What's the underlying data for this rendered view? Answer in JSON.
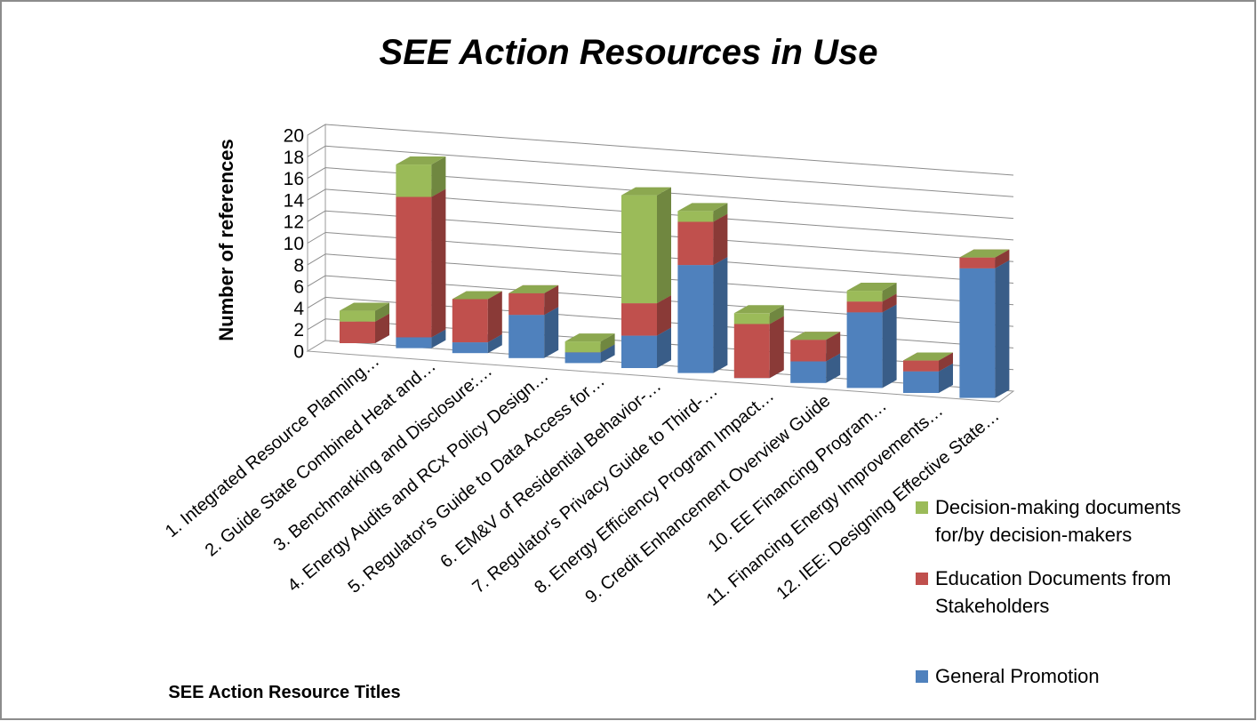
{
  "chart_data": {
    "type": "bar3d_stacked",
    "title": "SEE Action Resources in Use",
    "y_label": "Number of references",
    "x_label": "SEE Action Resource Titles",
    "categories": [
      "1. Integrated Resource Planning…",
      "2. Guide State Combined Heat and…",
      "3. Benchmarking and Disclosure:…",
      "4. Energy Audits and RCx Policy Design…",
      "5. Regulator's Guide to Data Access for…",
      "6. EM&V of Residential Behavior-…",
      "7. Regulator's Privacy Guide to Third-…",
      "8. Energy Efficiency Program Impact…",
      "9. Credit Enhancement Overview Guide",
      "10. EE Financing Program…",
      "11. Financing Energy Improvements…",
      "12. IEE: Designing Effective State…"
    ],
    "series": [
      {
        "name": "General Promotion",
        "color": "#4f81bd",
        "values": [
          0,
          1,
          1,
          4,
          1,
          3,
          10,
          0,
          2,
          7,
          2,
          12
        ]
      },
      {
        "name": "Education Documents from Stakeholders",
        "color": "#c0504d",
        "values": [
          2,
          13,
          4,
          2,
          0,
          3,
          4,
          5,
          2,
          1,
          1,
          1
        ]
      },
      {
        "name": "Decision-making documents for/by decision-makers",
        "color": "#9bbb59",
        "values": [
          1,
          3,
          0,
          0,
          1,
          10,
          1,
          1,
          0,
          1,
          0,
          0
        ]
      }
    ],
    "ylim": [
      0,
      20
    ],
    "yticks": [
      0,
      2,
      4,
      6,
      8,
      10,
      12,
      14,
      16,
      18,
      20
    ],
    "grid": true,
    "legend": "right"
  }
}
